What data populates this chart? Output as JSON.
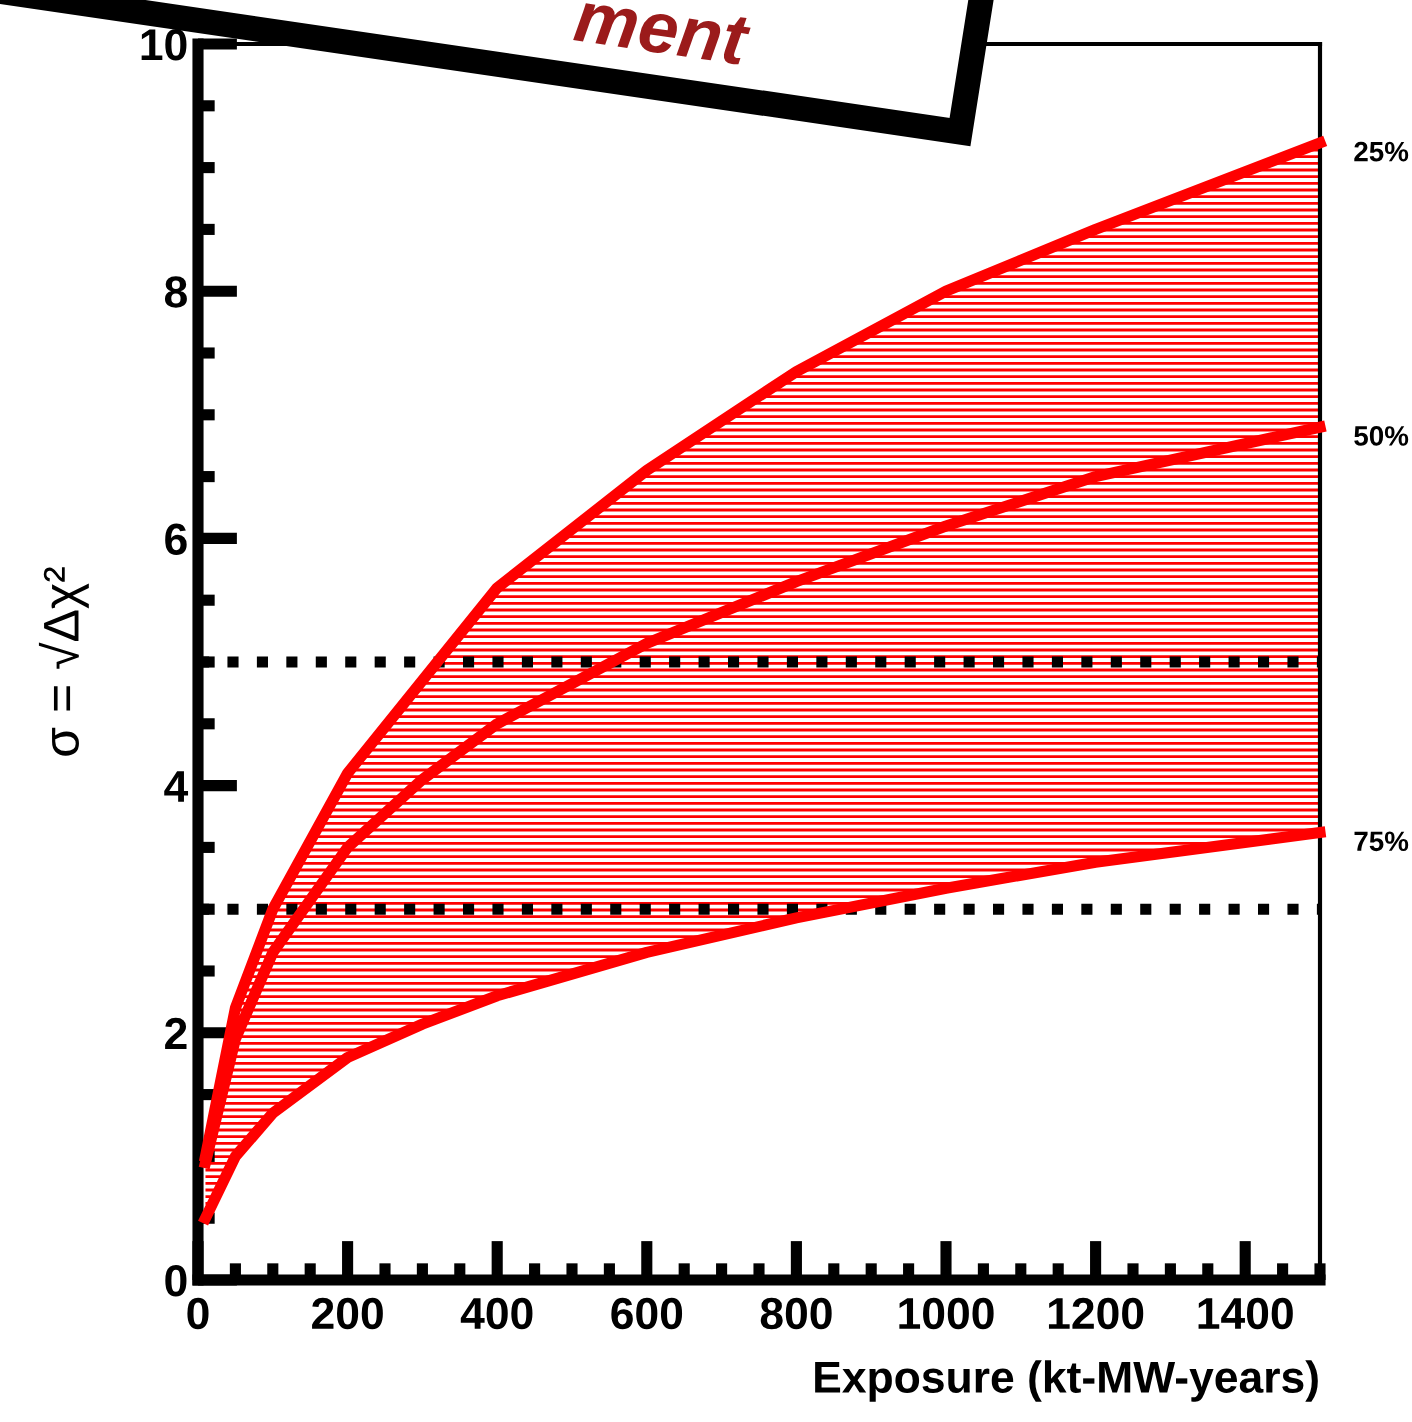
{
  "chart_data": {
    "type": "line",
    "xlabel": "Exposure (kt-MW-years)",
    "ylabel": "σ = √Δχ²",
    "annotations": [
      "ment"
    ],
    "x": [
      10,
      50,
      100,
      200,
      300,
      400,
      600,
      800,
      1000,
      1200,
      1500
    ],
    "series": [
      {
        "name": "25%",
        "color": "#ff0000",
        "values": [
          1.0,
          2.2,
          3.0,
          4.1,
          4.85,
          5.6,
          6.55,
          7.35,
          8.0,
          8.5,
          9.2
        ]
      },
      {
        "name": "50%",
        "color": "#ff0000",
        "values": [
          0.95,
          1.95,
          2.65,
          3.5,
          4.05,
          4.5,
          5.15,
          5.65,
          6.1,
          6.5,
          6.9
        ],
        "lower": [
          0.5,
          1.0,
          1.35,
          1.8,
          2.07,
          2.3,
          2.65,
          2.93,
          3.17,
          3.38,
          3.62
        ],
        "upper": [
          1.0,
          2.2,
          3.0,
          4.1,
          4.85,
          5.6,
          6.55,
          7.35,
          8.0,
          8.5,
          9.2
        ]
      },
      {
        "name": "75%",
        "color": "#ff0000",
        "values": [
          0.5,
          1.0,
          1.35,
          1.8,
          2.07,
          2.3,
          2.65,
          2.93,
          3.17,
          3.38,
          3.62
        ]
      }
    ],
    "ref_lines": [
      {
        "axis": "y",
        "value": 3,
        "color": "#000000",
        "line_style": "dotted"
      },
      {
        "axis": "y",
        "value": 5,
        "color": "#000000",
        "line_style": "dotted"
      }
    ],
    "xlim": [
      0,
      1500
    ],
    "xticks": [
      0,
      200,
      400,
      600,
      800,
      1000,
      1200,
      1400
    ],
    "ylim": [
      0,
      10
    ],
    "yticks": [
      0,
      2,
      4,
      6,
      8,
      10
    ],
    "grid": false,
    "legend": false,
    "marker": "none",
    "line_style": "solid"
  }
}
